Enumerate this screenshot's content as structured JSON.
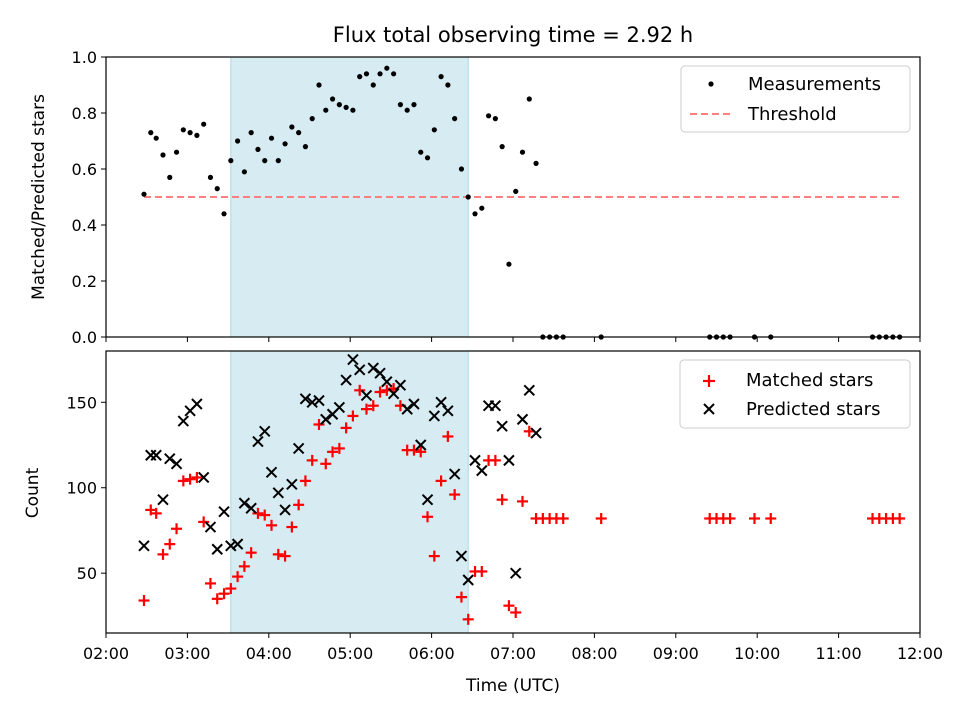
{
  "chart_data": [
    {
      "type": "scatter",
      "title": "Flux total observing time = 2.92 h",
      "xlabel": "",
      "ylabel": "Matched/Predicted stars",
      "xlim": [
        "02:00",
        "12:00"
      ],
      "ylim": [
        0,
        1.0
      ],
      "yticks": [
        "0.0",
        "0.2",
        "0.4",
        "0.6",
        "0.8",
        "1.0"
      ],
      "shaded_interval": [
        "03:32",
        "06:27"
      ],
      "shaded_color": "#add8e6",
      "legend_position": "top-right",
      "series": [
        {
          "name": "Measurements",
          "marker": "dot",
          "color": "#000000",
          "points": [
            [
              "02:28",
              0.51
            ],
            [
              "02:33",
              0.73
            ],
            [
              "02:37",
              0.71
            ],
            [
              "02:42",
              0.65
            ],
            [
              "02:47",
              0.57
            ],
            [
              "02:52",
              0.66
            ],
            [
              "02:57",
              0.74
            ],
            [
              "03:02",
              0.73
            ],
            [
              "03:07",
              0.72
            ],
            [
              "03:12",
              0.76
            ],
            [
              "03:17",
              0.57
            ],
            [
              "03:22",
              0.53
            ],
            [
              "03:27",
              0.44
            ],
            [
              "03:32",
              0.63
            ],
            [
              "03:37",
              0.7
            ],
            [
              "03:42",
              0.59
            ],
            [
              "03:47",
              0.73
            ],
            [
              "03:52",
              0.67
            ],
            [
              "03:57",
              0.63
            ],
            [
              "04:02",
              0.71
            ],
            [
              "04:07",
              0.63
            ],
            [
              "04:12",
              0.69
            ],
            [
              "04:17",
              0.75
            ],
            [
              "04:22",
              0.73
            ],
            [
              "04:27",
              0.68
            ],
            [
              "04:32",
              0.78
            ],
            [
              "04:37",
              0.9
            ],
            [
              "04:42",
              0.81
            ],
            [
              "04:47",
              0.85
            ],
            [
              "04:52",
              0.83
            ],
            [
              "04:57",
              0.82
            ],
            [
              "05:02",
              0.81
            ],
            [
              "05:07",
              0.93
            ],
            [
              "05:12",
              0.94
            ],
            [
              "05:17",
              0.9
            ],
            [
              "05:22",
              0.94
            ],
            [
              "05:27",
              0.96
            ],
            [
              "05:32",
              0.94
            ],
            [
              "05:37",
              0.83
            ],
            [
              "05:42",
              0.81
            ],
            [
              "05:47",
              0.83
            ],
            [
              "05:52",
              0.66
            ],
            [
              "05:57",
              0.64
            ],
            [
              "06:02",
              0.74
            ],
            [
              "06:07",
              0.93
            ],
            [
              "06:12",
              0.9
            ],
            [
              "06:17",
              0.78
            ],
            [
              "06:22",
              0.6
            ],
            [
              "06:27",
              0.5
            ],
            [
              "06:32",
              0.44
            ],
            [
              "06:37",
              0.46
            ],
            [
              "06:42",
              0.79
            ],
            [
              "06:47",
              0.78
            ],
            [
              "06:52",
              0.68
            ],
            [
              "06:57",
              0.26
            ],
            [
              "07:02",
              0.52
            ],
            [
              "07:07",
              0.66
            ],
            [
              "07:12",
              0.85
            ],
            [
              "07:17",
              0.62
            ],
            [
              "07:22",
              0.0
            ],
            [
              "07:27",
              0.0
            ],
            [
              "07:32",
              0.0
            ],
            [
              "07:37",
              0.0
            ],
            [
              "08:05",
              0.0
            ],
            [
              "09:25",
              0.0
            ],
            [
              "09:30",
              0.0
            ],
            [
              "09:35",
              0.0
            ],
            [
              "09:40",
              0.0
            ],
            [
              "09:58",
              0.0
            ],
            [
              "10:10",
              0.0
            ],
            [
              "11:25",
              0.0
            ],
            [
              "11:30",
              0.0
            ],
            [
              "11:35",
              0.0
            ],
            [
              "11:40",
              0.0
            ],
            [
              "11:45",
              0.0
            ]
          ]
        },
        {
          "name": "Threshold",
          "line": "dashed",
          "color": "#ff7f7f",
          "points": [
            [
              "02:28",
              0.5
            ],
            [
              "11:45",
              0.5
            ]
          ]
        }
      ]
    },
    {
      "type": "scatter",
      "title": "",
      "xlabel": "Time (UTC)",
      "ylabel": "Count",
      "xlim": [
        "02:00",
        "12:00"
      ],
      "xticks": [
        "02:00",
        "03:00",
        "04:00",
        "05:00",
        "06:00",
        "07:00",
        "08:00",
        "09:00",
        "10:00",
        "11:00",
        "12:00"
      ],
      "ylim": [
        15,
        180
      ],
      "yticks": [
        "50",
        "100",
        "150"
      ],
      "shaded_interval": [
        "03:32",
        "06:27"
      ],
      "shaded_color": "#add8e6",
      "legend_position": "top-right",
      "series": [
        {
          "name": "Matched stars",
          "marker": "plus",
          "color": "#ff0000",
          "points": [
            [
              "02:28",
              34
            ],
            [
              "02:33",
              87
            ],
            [
              "02:37",
              85
            ],
            [
              "02:42",
              61
            ],
            [
              "02:47",
              67
            ],
            [
              "02:52",
              76
            ],
            [
              "02:57",
              104
            ],
            [
              "03:02",
              105
            ],
            [
              "03:07",
              106
            ],
            [
              "03:12",
              80
            ],
            [
              "03:17",
              44
            ],
            [
              "03:22",
              35
            ],
            [
              "03:27",
              38
            ],
            [
              "03:32",
              41
            ],
            [
              "03:37",
              48
            ],
            [
              "03:42",
              54
            ],
            [
              "03:47",
              62
            ],
            [
              "03:52",
              85
            ],
            [
              "03:57",
              84
            ],
            [
              "04:02",
              78
            ],
            [
              "04:07",
              61
            ],
            [
              "04:12",
              60
            ],
            [
              "04:17",
              77
            ],
            [
              "04:22",
              90
            ],
            [
              "04:27",
              104
            ],
            [
              "04:32",
              116
            ],
            [
              "04:37",
              137
            ],
            [
              "04:42",
              114
            ],
            [
              "04:47",
              121
            ],
            [
              "04:52",
              123
            ],
            [
              "04:57",
              135
            ],
            [
              "05:02",
              142
            ],
            [
              "05:07",
              157
            ],
            [
              "05:12",
              146
            ],
            [
              "05:17",
              148
            ],
            [
              "05:22",
              156
            ],
            [
              "05:27",
              157
            ],
            [
              "05:32",
              158
            ],
            [
              "05:37",
              148
            ],
            [
              "05:42",
              122
            ],
            [
              "05:47",
              122
            ],
            [
              "05:52",
              121
            ],
            [
              "05:57",
              83
            ],
            [
              "06:02",
              60
            ],
            [
              "06:07",
              104
            ],
            [
              "06:12",
              130
            ],
            [
              "06:17",
              96
            ],
            [
              "06:22",
              36
            ],
            [
              "06:27",
              23
            ],
            [
              "06:32",
              51
            ],
            [
              "06:37",
              51
            ],
            [
              "06:42",
              116
            ],
            [
              "06:47",
              116
            ],
            [
              "06:52",
              93
            ],
            [
              "06:57",
              31
            ],
            [
              "07:02",
              27
            ],
            [
              "07:07",
              92
            ],
            [
              "07:12",
              133
            ],
            [
              "07:17",
              82
            ],
            [
              "07:22",
              82
            ],
            [
              "07:27",
              82
            ],
            [
              "07:32",
              82
            ],
            [
              "07:37",
              82
            ],
            [
              "08:05",
              82
            ],
            [
              "09:25",
              82
            ],
            [
              "09:30",
              82
            ],
            [
              "09:35",
              82
            ],
            [
              "09:40",
              82
            ],
            [
              "09:58",
              82
            ],
            [
              "10:10",
              82
            ],
            [
              "11:25",
              82
            ],
            [
              "11:30",
              82
            ],
            [
              "11:35",
              82
            ],
            [
              "11:40",
              82
            ],
            [
              "11:45",
              82
            ]
          ]
        },
        {
          "name": "Predicted stars",
          "marker": "x",
          "color": "#000000",
          "points": [
            [
              "02:28",
              66
            ],
            [
              "02:33",
              119
            ],
            [
              "02:37",
              119
            ],
            [
              "02:42",
              93
            ],
            [
              "02:47",
              117
            ],
            [
              "02:52",
              114
            ],
            [
              "02:57",
              139
            ],
            [
              "03:02",
              145
            ],
            [
              "03:07",
              149
            ],
            [
              "03:12",
              106
            ],
            [
              "03:17",
              77
            ],
            [
              "03:22",
              64
            ],
            [
              "03:27",
              86
            ],
            [
              "03:32",
              66
            ],
            [
              "03:37",
              67
            ],
            [
              "03:42",
              91
            ],
            [
              "03:47",
              88
            ],
            [
              "03:52",
              127
            ],
            [
              "03:57",
              133
            ],
            [
              "04:02",
              109
            ],
            [
              "04:07",
              97
            ],
            [
              "04:12",
              87
            ],
            [
              "04:17",
              102
            ],
            [
              "04:22",
              123
            ],
            [
              "04:27",
              152
            ],
            [
              "04:32",
              150
            ],
            [
              "04:37",
              151
            ],
            [
              "04:42",
              140
            ],
            [
              "04:47",
              143
            ],
            [
              "04:52",
              147
            ],
            [
              "04:57",
              163
            ],
            [
              "05:02",
              175
            ],
            [
              "05:07",
              169
            ],
            [
              "05:12",
              154
            ],
            [
              "05:17",
              170
            ],
            [
              "05:22",
              167
            ],
            [
              "05:27",
              162
            ],
            [
              "05:32",
              155
            ],
            [
              "05:37",
              160
            ],
            [
              "05:42",
              146
            ],
            [
              "05:47",
              149
            ],
            [
              "05:52",
              125
            ],
            [
              "05:57",
              93
            ],
            [
              "06:02",
              142
            ],
            [
              "06:07",
              150
            ],
            [
              "06:12",
              145
            ],
            [
              "06:17",
              108
            ],
            [
              "06:22",
              60
            ],
            [
              "06:27",
              46
            ],
            [
              "06:32",
              116
            ],
            [
              "06:37",
              110
            ],
            [
              "06:42",
              148
            ],
            [
              "06:47",
              148
            ],
            [
              "06:52",
              136
            ],
            [
              "06:57",
              116
            ],
            [
              "07:02",
              50
            ],
            [
              "07:07",
              140
            ],
            [
              "07:12",
              157
            ],
            [
              "07:17",
              132
            ]
          ]
        }
      ]
    }
  ]
}
